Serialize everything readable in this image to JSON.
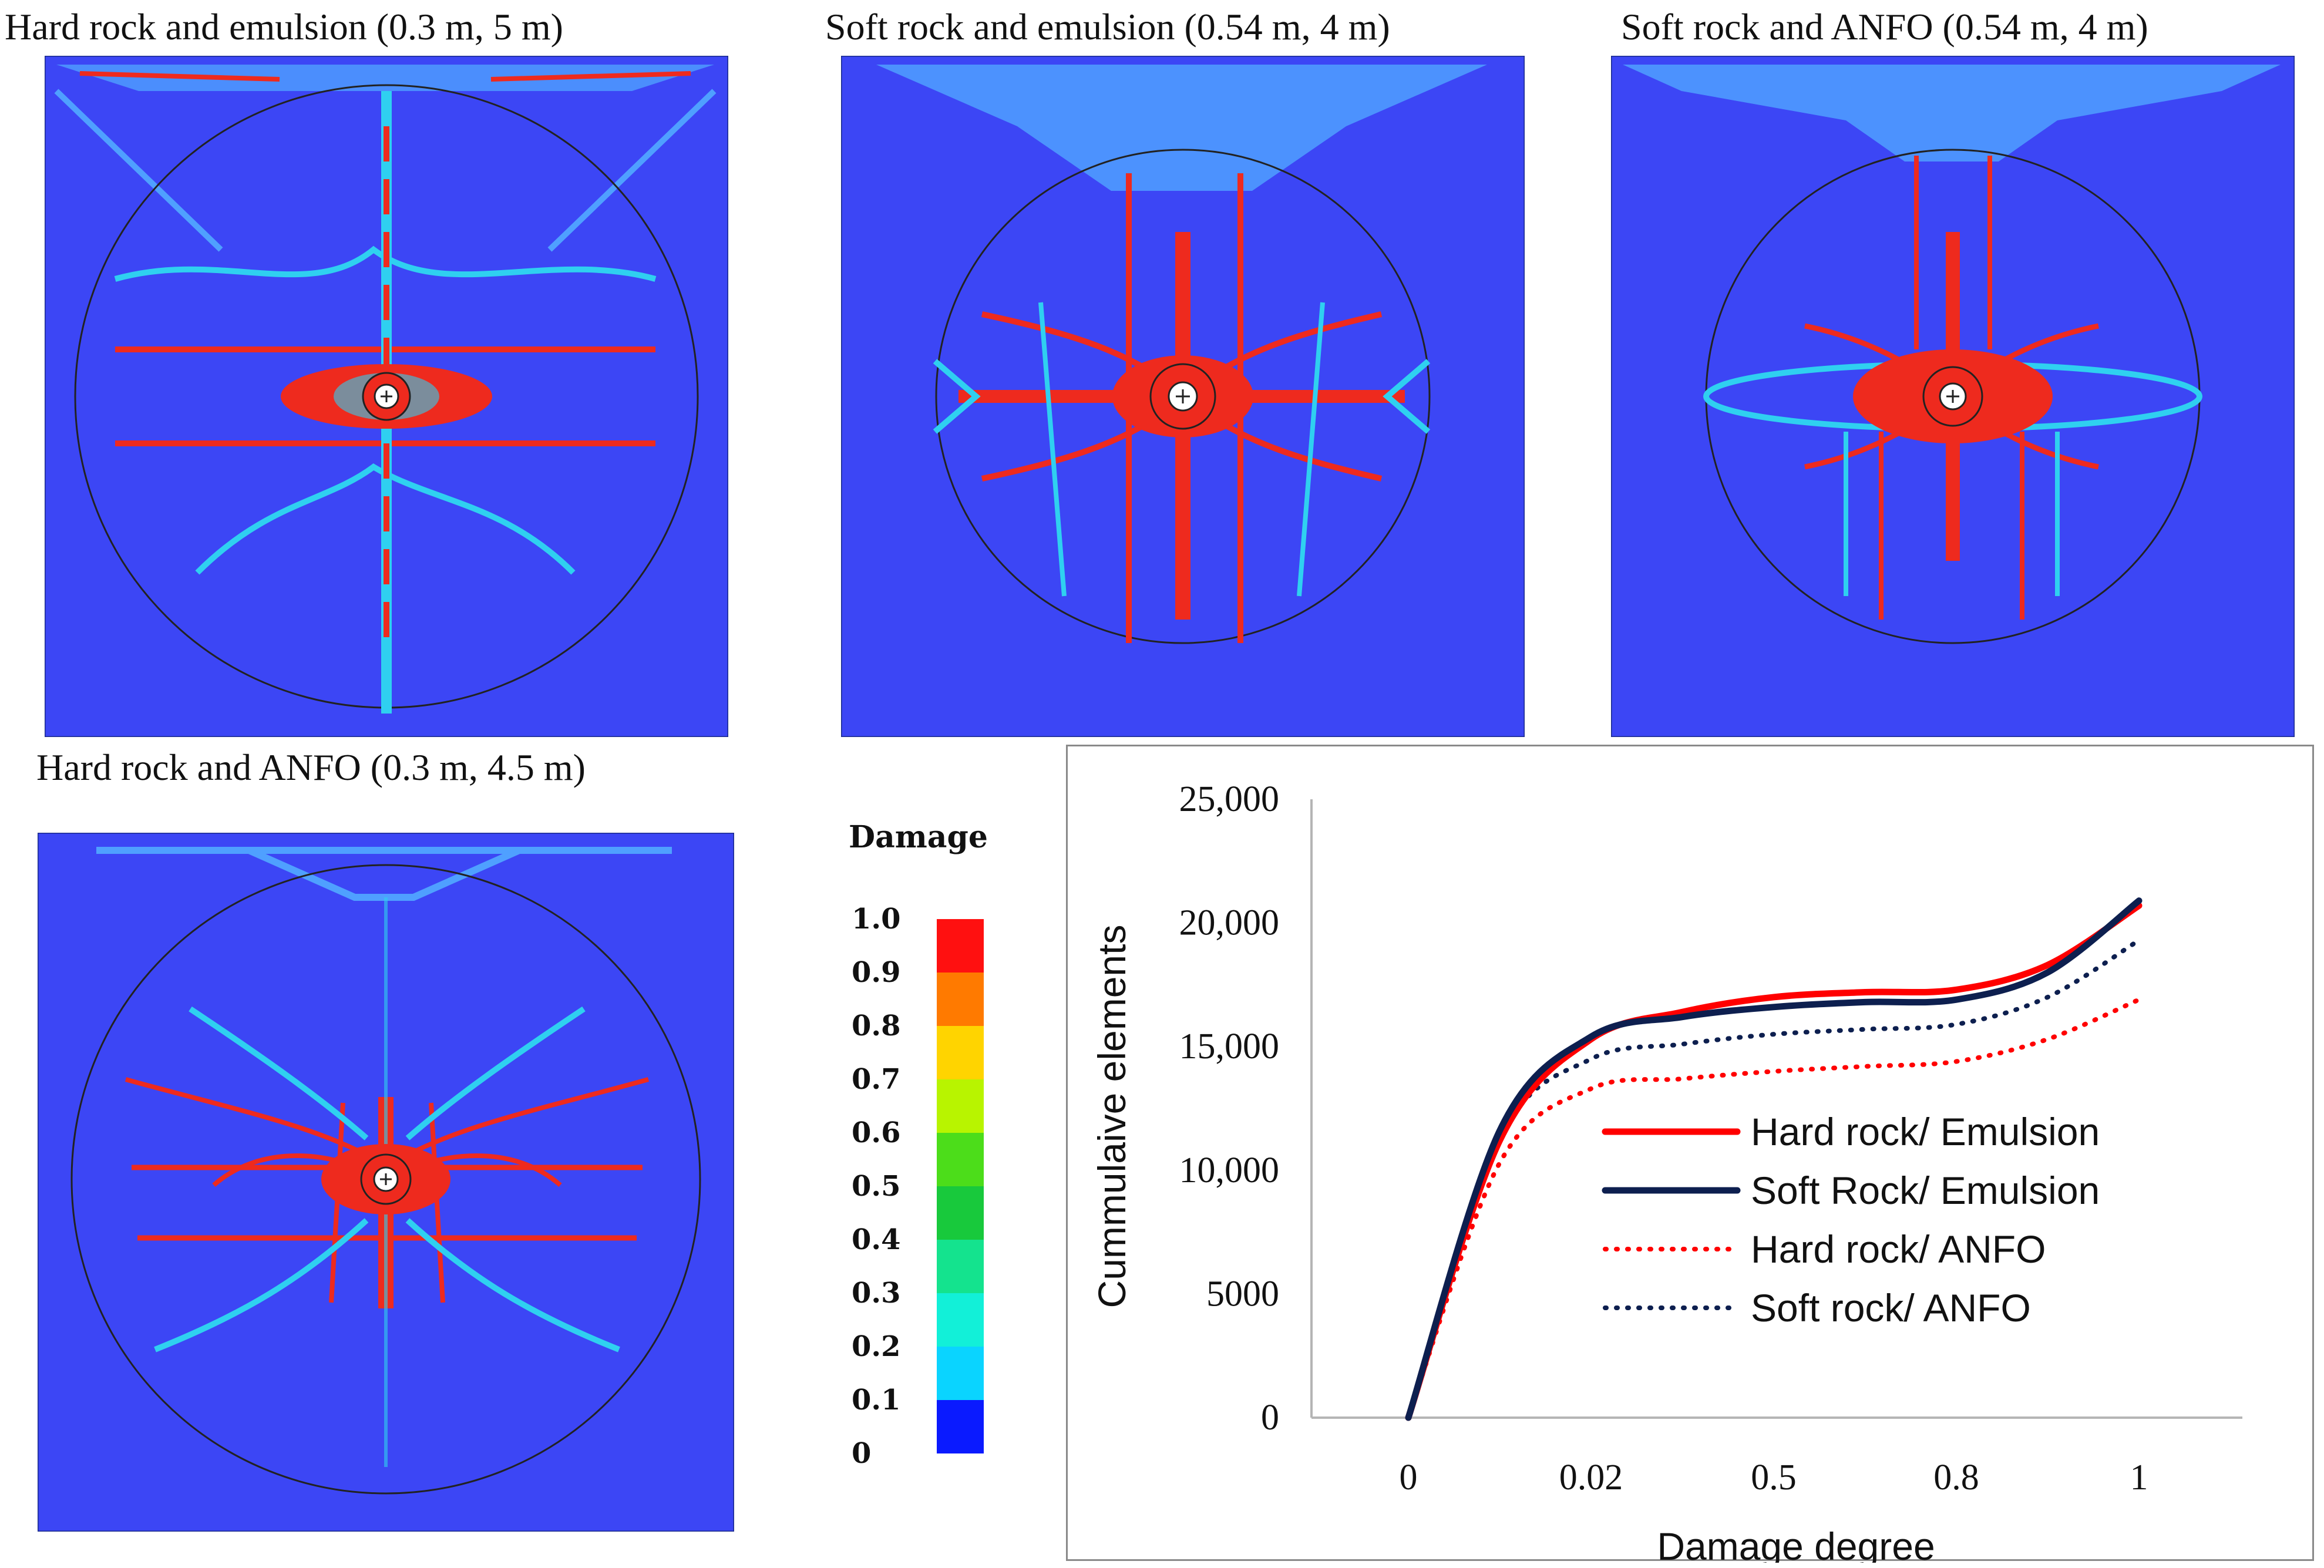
{
  "panels": [
    {
      "title": "Hard rock and emulsion (0.3 m, 5 m)"
    },
    {
      "title": "Soft rock and emulsion (0.54 m, 4 m)"
    },
    {
      "title": "Soft rock and ANFO (0.54 m, 4 m)"
    },
    {
      "title": "Hard rock and ANFO (0.3 m, 4.5 m)"
    }
  ],
  "colorbar": {
    "title": "Damage",
    "labels": [
      "1.0",
      "0.9",
      "0.8",
      "0.7",
      "0.6",
      "0.5",
      "0.4",
      "0.3",
      "0.2",
      "0.1",
      "0"
    ],
    "colors": [
      "#ff1010",
      "#ff7a00",
      "#ffd400",
      "#b8f400",
      "#4cdd1a",
      "#18c93c",
      "#14e38e",
      "#12f0d8",
      "#0ad4ff",
      "#1a78ff",
      "#0a1aff"
    ]
  },
  "colors": {
    "background": "#3c46f5",
    "crack_red": "#ee2a1e",
    "crack_cyan": "#2fd0f0",
    "crack_light": "#4fa0ff",
    "navy": "#0d1f4f",
    "red": "#ff0000"
  },
  "chart_data": {
    "type": "line",
    "xlabel": "Damage degree",
    "ylabel": "Cummulaive elements",
    "categories": [
      "0",
      "0.02",
      "0.5",
      "0.8",
      "1"
    ],
    "ylim": [
      0,
      25000
    ],
    "yticks": [
      "25,000",
      "20,000",
      "15,000",
      "10,000",
      "5000",
      "0"
    ],
    "series": [
      {
        "name": "Hard rock/ Emulsion",
        "color": "#ff0000",
        "style": "solid",
        "points": [
          [
            0,
            0
          ],
          [
            0.5,
            11200
          ],
          [
            1,
            15300
          ],
          [
            1.5,
            16400
          ],
          [
            2,
            17000
          ],
          [
            2.5,
            17200
          ],
          [
            3,
            17300
          ],
          [
            3.5,
            18300
          ],
          [
            4,
            20700
          ]
        ]
      },
      {
        "name": "Soft Rock/ Emulsion",
        "color": "#0d1f4f",
        "style": "solid",
        "points": [
          [
            0,
            0
          ],
          [
            0.5,
            11600
          ],
          [
            1,
            15400
          ],
          [
            1.5,
            16200
          ],
          [
            2,
            16600
          ],
          [
            2.5,
            16800
          ],
          [
            3,
            16900
          ],
          [
            3.5,
            18000
          ],
          [
            4,
            20900
          ]
        ]
      },
      {
        "name": "Hard rock/ ANFO",
        "color": "#ff0000",
        "style": "dotted",
        "points": [
          [
            0,
            0
          ],
          [
            0.5,
            10300
          ],
          [
            1,
            13300
          ],
          [
            1.5,
            13700
          ],
          [
            2,
            14000
          ],
          [
            2.5,
            14200
          ],
          [
            3,
            14400
          ],
          [
            3.5,
            15300
          ],
          [
            4,
            16900
          ]
        ]
      },
      {
        "name": "Soft rock/ ANFO",
        "color": "#0d1f4f",
        "style": "dotted",
        "points": [
          [
            0,
            0
          ],
          [
            0.5,
            11300
          ],
          [
            1,
            14500
          ],
          [
            1.5,
            15100
          ],
          [
            2,
            15500
          ],
          [
            2.5,
            15700
          ],
          [
            3,
            15900
          ],
          [
            3.5,
            17000
          ],
          [
            4,
            19300
          ]
        ]
      }
    ]
  }
}
